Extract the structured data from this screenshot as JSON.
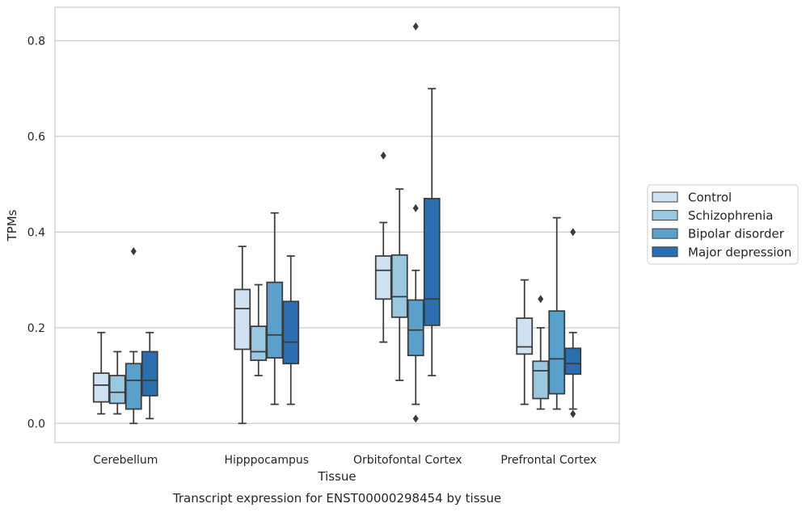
{
  "chart_data": {
    "type": "boxplot",
    "xlabel": "Tissue",
    "ylabel": "TPMs",
    "caption": "Transcript expression for ENST00000298454 by tissue",
    "ylim": [
      -0.04,
      0.87
    ],
    "yticks": [
      0.0,
      0.2,
      0.4,
      0.6,
      0.8
    ],
    "ytick_labels": [
      "0.0",
      "0.2",
      "0.4",
      "0.6",
      "0.8"
    ],
    "grid": true,
    "legend_position": "right",
    "categories": [
      "Cerebellum",
      "Hipppocampus",
      "Orbitofontal Cortex",
      "Prefrontal Cortex"
    ],
    "series": [
      {
        "name": "Control",
        "color": "#d0e1f2",
        "boxes": [
          {
            "whislo": 0.02,
            "q1": 0.045,
            "med": 0.08,
            "q3": 0.105,
            "whishi": 0.19,
            "fliers": []
          },
          {
            "whislo": 0.0,
            "q1": 0.155,
            "med": 0.24,
            "q3": 0.28,
            "whishi": 0.37,
            "fliers": []
          },
          {
            "whislo": 0.17,
            "q1": 0.26,
            "med": 0.32,
            "q3": 0.35,
            "whishi": 0.42,
            "fliers": [
              0.56
            ]
          },
          {
            "whislo": 0.04,
            "q1": 0.145,
            "med": 0.16,
            "q3": 0.22,
            "whishi": 0.3,
            "fliers": []
          }
        ]
      },
      {
        "name": "Schizophrenia",
        "color": "#9ac8e0",
        "boxes": [
          {
            "whislo": 0.02,
            "q1": 0.042,
            "med": 0.065,
            "q3": 0.1,
            "whishi": 0.15,
            "fliers": []
          },
          {
            "whislo": 0.1,
            "q1": 0.132,
            "med": 0.15,
            "q3": 0.203,
            "whishi": 0.29,
            "fliers": []
          },
          {
            "whislo": 0.09,
            "q1": 0.222,
            "med": 0.265,
            "q3": 0.352,
            "whishi": 0.49,
            "fliers": []
          },
          {
            "whislo": 0.03,
            "q1": 0.052,
            "med": 0.11,
            "q3": 0.13,
            "whishi": 0.2,
            "fliers": [
              0.26
            ]
          }
        ]
      },
      {
        "name": "Bipolar disorder",
        "color": "#5b9fcb",
        "boxes": [
          {
            "whislo": 0.0,
            "q1": 0.03,
            "med": 0.09,
            "q3": 0.125,
            "whishi": 0.15,
            "fliers": [
              0.36
            ]
          },
          {
            "whislo": 0.04,
            "q1": 0.137,
            "med": 0.185,
            "q3": 0.295,
            "whishi": 0.44,
            "fliers": []
          },
          {
            "whislo": 0.04,
            "q1": 0.142,
            "med": 0.195,
            "q3": 0.258,
            "whishi": 0.32,
            "fliers": [
              0.01,
              0.45,
              0.83
            ]
          },
          {
            "whislo": 0.03,
            "q1": 0.062,
            "med": 0.135,
            "q3": 0.235,
            "whishi": 0.43,
            "fliers": []
          }
        ]
      },
      {
        "name": "Major depression",
        "color": "#2c6fb0",
        "boxes": [
          {
            "whislo": 0.01,
            "q1": 0.058,
            "med": 0.09,
            "q3": 0.15,
            "whishi": 0.19,
            "fliers": []
          },
          {
            "whislo": 0.04,
            "q1": 0.125,
            "med": 0.17,
            "q3": 0.255,
            "whishi": 0.35,
            "fliers": []
          },
          {
            "whislo": 0.1,
            "q1": 0.205,
            "med": 0.26,
            "q3": 0.47,
            "whishi": 0.7,
            "fliers": []
          },
          {
            "whislo": 0.03,
            "q1": 0.103,
            "med": 0.125,
            "q3": 0.157,
            "whishi": 0.19,
            "fliers": [
              0.02,
              0.4
            ]
          }
        ]
      }
    ]
  }
}
